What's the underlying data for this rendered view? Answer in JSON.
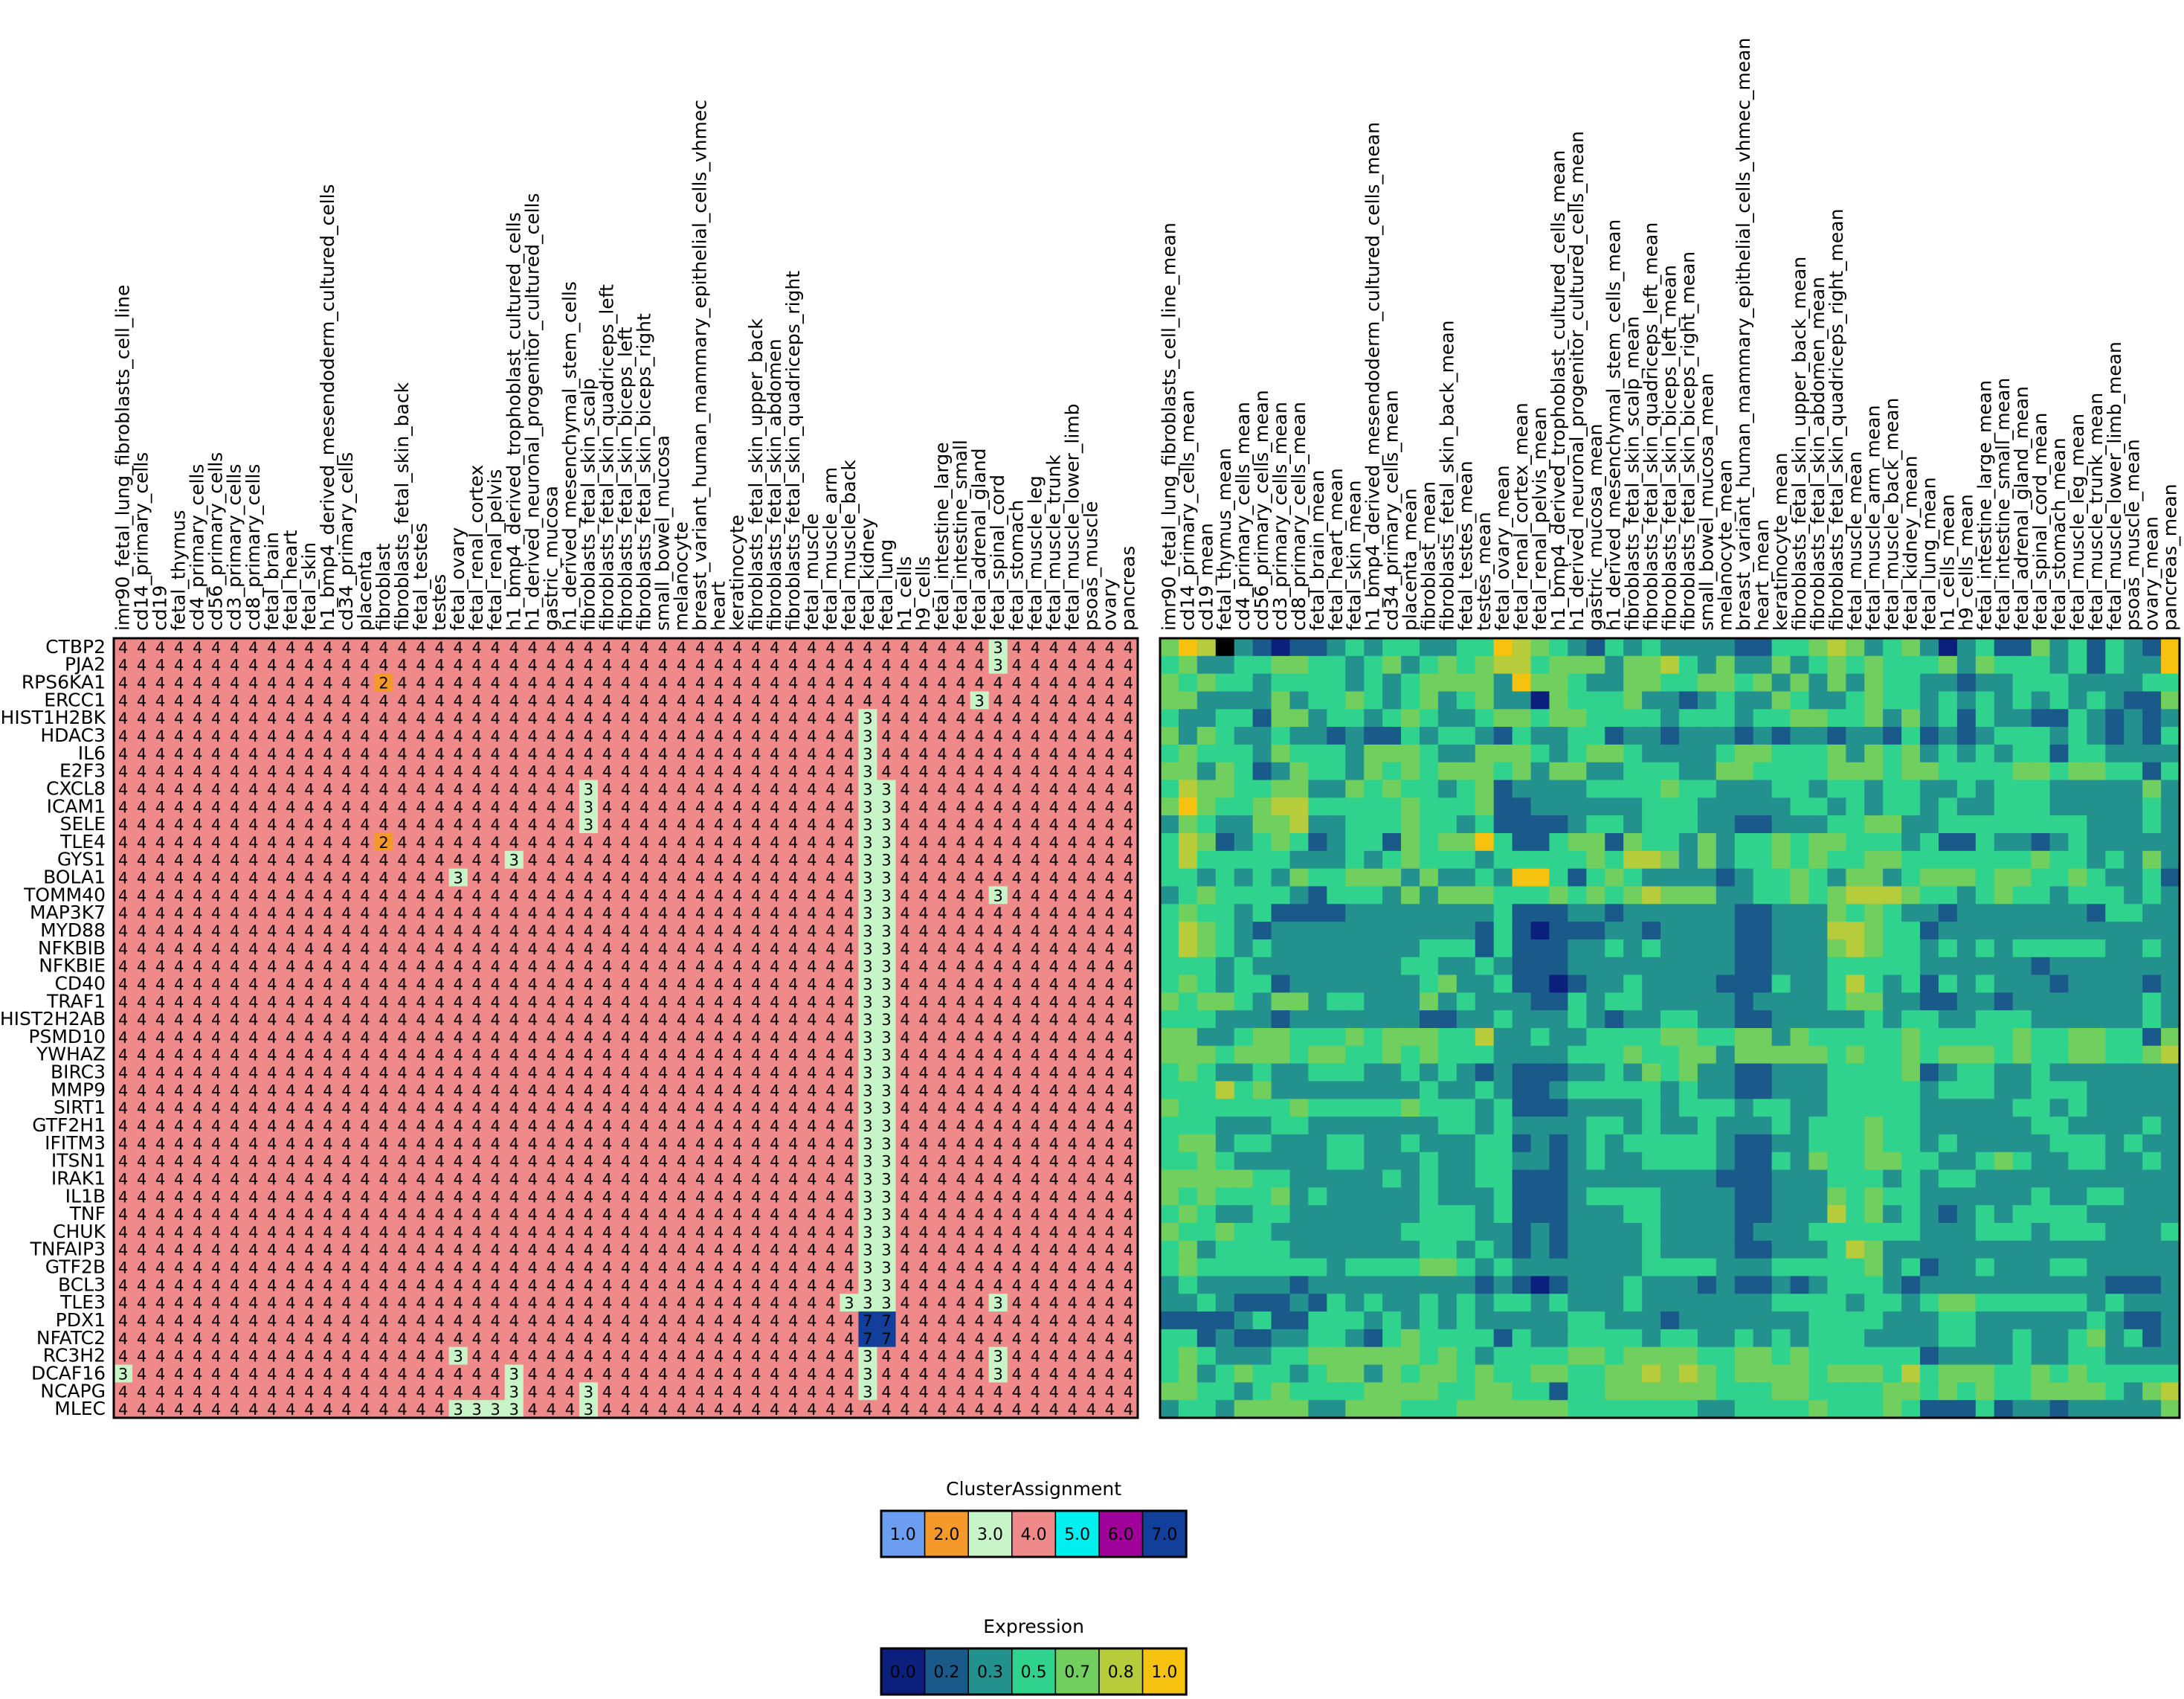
{
  "chart_data": [
    {
      "type": "heatmap",
      "rows": [
        "CTBP2",
        "PJA2",
        "RPS6KA1",
        "ERCC1",
        "HIST1H2BK",
        "HDAC3",
        "IL6",
        "E2F3",
        "CXCL8",
        "ICAM1",
        "SELE",
        "TLE4",
        "GYS1",
        "BOLA1",
        "TOMM40",
        "MAP3K7",
        "MYD88",
        "NFKBIB",
        "NFKBIE",
        "CD40",
        "TRAF1",
        "HIST2H2AB",
        "PSMD10",
        "YWHAZ",
        "BIRC3",
        "MMP9",
        "SIRT1",
        "GTF2H1",
        "IFITM3",
        "ITSN1",
        "IRAK1",
        "IL1B",
        "TNF",
        "CHUK",
        "TNFAIP3",
        "GTF2B",
        "BCL3",
        "TLE3",
        "PDX1",
        "NFATC2",
        "RC3H2",
        "DCAF16",
        "NCAPG",
        "MLEC"
      ],
      "columns": [
        "imr90_fetal_lung_fibroblasts_cell_line",
        "cd14_primary_cells",
        "cd19",
        "fetal_thymus",
        "cd4_primary_cells",
        "cd56_primary_cells",
        "cd3_primary_cells",
        "cd8_primary_cells",
        "fetal_brain",
        "fetal_heart",
        "fetal_skin",
        "h1_bmp4_derived_mesendoderm_cultured_cells",
        "cd34_primary_cells",
        "placenta",
        "fibroblast",
        "fibroblasts_fetal_skin_back",
        "fetal_testes",
        "testes",
        "fetal_ovary",
        "fetal_renal_cortex",
        "fetal_renal_pelvis",
        "h1_bmp4_derived_trophoblast_cultured_cells",
        "h1_derived_neuronal_progenitor_cultured_cells",
        "gastric_mucosa",
        "h1_derived_mesenchymal_stem_cells",
        "fibroblasts_fetal_skin_scalp",
        "fibroblasts_fetal_skin_quadriceps_left",
        "fibroblasts_fetal_skin_biceps_left",
        "fibroblasts_fetal_skin_biceps_right",
        "small_bowel_mucosa",
        "melanocyte",
        "breast_variant_human_mammary_epithelial_cells_vhmec",
        "heart",
        "keratinocyte",
        "fibroblasts_fetal_skin_upper_back",
        "fibroblasts_fetal_skin_abdomen",
        "fibroblasts_fetal_skin_quadriceps_right",
        "fetal_muscle",
        "fetal_muscle_arm",
        "fetal_muscle_back",
        "fetal_kidney",
        "fetal_lung",
        "h1_cells",
        "h9_cells",
        "fetal_intestine_large",
        "fetal_intestine_small",
        "fetal_adrenal_gland",
        "fetal_spinal_cord",
        "fetal_stomach",
        "fetal_muscle_leg",
        "fetal_muscle_trunk",
        "fetal_muscle_lower_limb",
        "psoas_muscle",
        "ovary",
        "pancreas"
      ],
      "default_value": 4,
      "exceptions": [
        {
          "row": "CTBP2",
          "col": "fetal_spinal_cord",
          "value": 3
        },
        {
          "row": "PJA2",
          "col": "fetal_spinal_cord",
          "value": 3
        },
        {
          "row": "RPS6KA1",
          "col": "fibroblast",
          "value": 2
        },
        {
          "row": "ERCC1",
          "col": "fetal_adrenal_gland",
          "value": 3
        },
        {
          "row": "HIST1H2BK",
          "col": "fetal_kidney",
          "value": 3
        },
        {
          "row": "HDAC3",
          "col": "fetal_kidney",
          "value": 3
        },
        {
          "row": "IL6",
          "col": "fetal_kidney",
          "value": 3
        },
        {
          "row": "E2F3",
          "col": "fetal_kidney",
          "value": 3
        },
        {
          "row": "CXCL8",
          "col": "fibroblasts_fetal_skin_scalp",
          "value": 3
        },
        {
          "row": "CXCL8",
          "col": "fetal_kidney",
          "value": 3
        },
        {
          "row": "CXCL8",
          "col": "fetal_lung",
          "value": 3
        },
        {
          "row": "ICAM1",
          "col": "fibroblasts_fetal_skin_scalp",
          "value": 3
        },
        {
          "row": "ICAM1",
          "col": "fetal_kidney",
          "value": 3
        },
        {
          "row": "ICAM1",
          "col": "fetal_lung",
          "value": 3
        },
        {
          "row": "SELE",
          "col": "fibroblasts_fetal_skin_scalp",
          "value": 3
        },
        {
          "row": "SELE",
          "col": "fetal_kidney",
          "value": 3
        },
        {
          "row": "SELE",
          "col": "fetal_lung",
          "value": 3
        },
        {
          "row": "TLE4",
          "col": "fibroblast",
          "value": 2
        },
        {
          "row": "TLE4",
          "col": "fetal_kidney",
          "value": 3
        },
        {
          "row": "TLE4",
          "col": "fetal_lung",
          "value": 3
        },
        {
          "row": "GYS1",
          "col": "h1_bmp4_derived_trophoblast_cultured_cells",
          "value": 3
        },
        {
          "row": "GYS1",
          "col": "fetal_kidney",
          "value": 3
        },
        {
          "row": "GYS1",
          "col": "fetal_lung",
          "value": 3
        },
        {
          "row": "BOLA1",
          "col": "fetal_ovary",
          "value": 3
        },
        {
          "row": "BOLA1",
          "col": "fetal_kidney",
          "value": 3
        },
        {
          "row": "BOLA1",
          "col": "fetal_lung",
          "value": 3
        },
        {
          "row": "TOMM40",
          "col": "fetal_kidney",
          "value": 3
        },
        {
          "row": "TOMM40",
          "col": "fetal_lung",
          "value": 3
        },
        {
          "row": "TOMM40",
          "col": "fetal_spinal_cord",
          "value": 3
        },
        {
          "row": "MAP3K7",
          "col": "fetal_kidney",
          "value": 3
        },
        {
          "row": "MAP3K7",
          "col": "fetal_lung",
          "value": 3
        },
        {
          "row": "MYD88",
          "col": "fetal_kidney",
          "value": 3
        },
        {
          "row": "MYD88",
          "col": "fetal_lung",
          "value": 3
        },
        {
          "row": "NFKBIB",
          "col": "fetal_kidney",
          "value": 3
        },
        {
          "row": "NFKBIB",
          "col": "fetal_lung",
          "value": 3
        },
        {
          "row": "NFKBIE",
          "col": "fetal_kidney",
          "value": 3
        },
        {
          "row": "NFKBIE",
          "col": "fetal_lung",
          "value": 3
        },
        {
          "row": "CD40",
          "col": "fetal_kidney",
          "value": 3
        },
        {
          "row": "CD40",
          "col": "fetal_lung",
          "value": 3
        },
        {
          "row": "TRAF1",
          "col": "fetal_kidney",
          "value": 3
        },
        {
          "row": "TRAF1",
          "col": "fetal_lung",
          "value": 3
        },
        {
          "row": "HIST2H2AB",
          "col": "fetal_kidney",
          "value": 3
        },
        {
          "row": "HIST2H2AB",
          "col": "fetal_lung",
          "value": 3
        },
        {
          "row": "PSMD10",
          "col": "fetal_kidney",
          "value": 3
        },
        {
          "row": "PSMD10",
          "col": "fetal_lung",
          "value": 3
        },
        {
          "row": "YWHAZ",
          "col": "fetal_kidney",
          "value": 3
        },
        {
          "row": "YWHAZ",
          "col": "fetal_lung",
          "value": 3
        },
        {
          "row": "BIRC3",
          "col": "fetal_kidney",
          "value": 3
        },
        {
          "row": "BIRC3",
          "col": "fetal_lung",
          "value": 3
        },
        {
          "row": "MMP9",
          "col": "fetal_kidney",
          "value": 3
        },
        {
          "row": "MMP9",
          "col": "fetal_lung",
          "value": 3
        },
        {
          "row": "SIRT1",
          "col": "fetal_kidney",
          "value": 3
        },
        {
          "row": "SIRT1",
          "col": "fetal_lung",
          "value": 3
        },
        {
          "row": "GTF2H1",
          "col": "fetal_kidney",
          "value": 3
        },
        {
          "row": "GTF2H1",
          "col": "fetal_lung",
          "value": 3
        },
        {
          "row": "IFITM3",
          "col": "fetal_kidney",
          "value": 3
        },
        {
          "row": "IFITM3",
          "col": "fetal_lung",
          "value": 3
        },
        {
          "row": "ITSN1",
          "col": "fetal_kidney",
          "value": 3
        },
        {
          "row": "ITSN1",
          "col": "fetal_lung",
          "value": 3
        },
        {
          "row": "IRAK1",
          "col": "fetal_kidney",
          "value": 3
        },
        {
          "row": "IRAK1",
          "col": "fetal_lung",
          "value": 3
        },
        {
          "row": "IL1B",
          "col": "fetal_kidney",
          "value": 3
        },
        {
          "row": "IL1B",
          "col": "fetal_lung",
          "value": 3
        },
        {
          "row": "TNF",
          "col": "fetal_kidney",
          "value": 3
        },
        {
          "row": "TNF",
          "col": "fetal_lung",
          "value": 3
        },
        {
          "row": "CHUK",
          "col": "fetal_kidney",
          "value": 3
        },
        {
          "row": "CHUK",
          "col": "fetal_lung",
          "value": 3
        },
        {
          "row": "TNFAIP3",
          "col": "fetal_kidney",
          "value": 3
        },
        {
          "row": "TNFAIP3",
          "col": "fetal_lung",
          "value": 3
        },
        {
          "row": "GTF2B",
          "col": "fetal_kidney",
          "value": 3
        },
        {
          "row": "GTF2B",
          "col": "fetal_lung",
          "value": 3
        },
        {
          "row": "BCL3",
          "col": "fetal_kidney",
          "value": 3
        },
        {
          "row": "BCL3",
          "col": "fetal_lung",
          "value": 3
        },
        {
          "row": "TLE3",
          "col": "fetal_muscle_back",
          "value": 3
        },
        {
          "row": "TLE3",
          "col": "fetal_kidney",
          "value": 3
        },
        {
          "row": "TLE3",
          "col": "fetal_lung",
          "value": 3
        },
        {
          "row": "TLE3",
          "col": "fetal_spinal_cord",
          "value": 3
        },
        {
          "row": "PDX1",
          "col": "fetal_kidney",
          "value": 7
        },
        {
          "row": "PDX1",
          "col": "fetal_lung",
          "value": 7
        },
        {
          "row": "NFATC2",
          "col": "fetal_kidney",
          "value": 7
        },
        {
          "row": "NFATC2",
          "col": "fetal_lung",
          "value": 7
        },
        {
          "row": "RC3H2",
          "col": "fetal_ovary",
          "value": 3
        },
        {
          "row": "RC3H2",
          "col": "fetal_kidney",
          "value": 3
        },
        {
          "row": "RC3H2",
          "col": "fetal_spinal_cord",
          "value": 3
        },
        {
          "row": "DCAF16",
          "col": "imr90_fetal_lung_fibroblasts_cell_line",
          "value": 3
        },
        {
          "row": "DCAF16",
          "col": "h1_bmp4_derived_trophoblast_cultured_cells",
          "value": 3
        },
        {
          "row": "DCAF16",
          "col": "fetal_kidney",
          "value": 3
        },
        {
          "row": "DCAF16",
          "col": "fetal_spinal_cord",
          "value": 3
        },
        {
          "row": "NCAPG",
          "col": "h1_bmp4_derived_trophoblast_cultured_cells",
          "value": 3
        },
        {
          "row": "NCAPG",
          "col": "fibroblasts_fetal_skin_scalp",
          "value": 3
        },
        {
          "row": "NCAPG",
          "col": "fetal_kidney",
          "value": 3
        },
        {
          "row": "MLEC",
          "col": "fetal_ovary",
          "value": 3
        },
        {
          "row": "MLEC",
          "col": "fetal_renal_cortex",
          "value": 3
        },
        {
          "row": "MLEC",
          "col": "fetal_renal_pelvis",
          "value": 3
        },
        {
          "row": "MLEC",
          "col": "h1_bmp4_derived_trophoblast_cultured_cells",
          "value": 3
        },
        {
          "row": "MLEC",
          "col": "fibroblasts_fetal_skin_scalp",
          "value": 3
        }
      ],
      "legend": {
        "title": "ClusterAssignment",
        "labels": [
          "1.0",
          "2.0",
          "3.0",
          "4.0",
          "5.0",
          "6.0",
          "7.0"
        ],
        "colors": [
          "#6b9ef0",
          "#f59a2a",
          "#c8f5c8",
          "#f08a8a",
          "#00f0f0",
          "#a0009a",
          "#123f9a"
        ]
      }
    },
    {
      "type": "heatmap",
      "rows": [
        "CTBP2",
        "PJA2",
        "RPS6KA1",
        "ERCC1",
        "HIST1H2BK",
        "HDAC3",
        "IL6",
        "E2F3",
        "CXCL8",
        "ICAM1",
        "SELE",
        "TLE4",
        "GYS1",
        "BOLA1",
        "TOMM40",
        "MAP3K7",
        "MYD88",
        "NFKBIB",
        "NFKBIE",
        "CD40",
        "TRAF1",
        "HIST2H2AB",
        "PSMD10",
        "YWHAZ",
        "BIRC3",
        "MMP9",
        "SIRT1",
        "GTF2H1",
        "IFITM3",
        "ITSN1",
        "IRAK1",
        "IL1B",
        "TNF",
        "CHUK",
        "TNFAIP3",
        "GTF2B",
        "BCL3",
        "TLE3",
        "PDX1",
        "NFATC2",
        "RC3H2",
        "DCAF16",
        "NCAPG",
        "MLEC"
      ],
      "columns": [
        "imr90_fetal_lung_fibroblasts_cell_line_mean",
        "cd14_primary_cells_mean",
        "cd19_mean",
        "fetal_thymus_mean",
        "cd4_primary_cells_mean",
        "cd56_primary_cells_mean",
        "cd3_primary_cells_mean",
        "cd8_primary_cells_mean",
        "fetal_brain_mean",
        "fetal_heart_mean",
        "fetal_skin_mean",
        "h1_bmp4_derived_mesendoderm_cultured_cells_mean",
        "cd34_primary_cells_mean",
        "placenta_mean",
        "fibroblast_mean",
        "fibroblasts_fetal_skin_back_mean",
        "fetal_testes_mean",
        "testes_mean",
        "fetal_ovary_mean",
        "fetal_renal_cortex_mean",
        "fetal_renal_pelvis_mean",
        "h1_bmp4_derived_trophoblast_cultured_cells_mean",
        "h1_derived_neuronal_progenitor_cultured_cells_mean",
        "gastric_mucosa_mean",
        "h1_derived_mesenchymal_stem_cells_mean",
        "fibroblasts_fetal_skin_scalp_mean",
        "fibroblasts_fetal_skin_quadriceps_left_mean",
        "fibroblasts_fetal_skin_biceps_left_mean",
        "fibroblasts_fetal_skin_biceps_right_mean",
        "small_bowel_mucosa_mean",
        "melanocyte_mean",
        "breast_variant_human_mammary_epithelial_cells_vhmec_mean",
        "heart_mean",
        "keratinocyte_mean",
        "fibroblasts_fetal_skin_upper_back_mean",
        "fibroblasts_fetal_skin_abdomen_mean",
        "fibroblasts_fetal_skin_quadriceps_right_mean",
        "fetal_muscle_mean",
        "fetal_muscle_arm_mean",
        "fetal_muscle_back_mean",
        "fetal_kidney_mean",
        "fetal_lung_mean",
        "h1_cells_mean",
        "h9_cells_mean",
        "fetal_intestine_large_mean",
        "fetal_intestine_small_mean",
        "fetal_adrenal_gland_mean",
        "fetal_spinal_cord_mean",
        "fetal_stomach_mean",
        "fetal_muscle_leg_mean",
        "fetal_muscle_trunk_mean",
        "fetal_muscle_lower_limb_mean",
        "psoas_muscle_mean",
        "ovary_mean",
        "pancreas_mean"
      ],
      "values_rows": [
        "4657210112323322336543213232222113345423420231142313216",
        "3422334433234234345534442445324224234343334243332313226",
        "4343323333232344442644322443344342424243322122333222233",
        "4422224233432342342204333422123224322343323232323232114",
        "3223314423323432234434433332333233443342423132211321212",
        "4243223221211323321322331221222121221221312123332321213",
        "3433324333244432244432344322223443334243423232331332222",
        "4424312433243434443424422333224433334443443333443443313",
        "3544334422434332341222233334332223323323322323332222242",
        "4643345533333433341122222233322222332323323223332222232",
        "2432244522333433231111233233322112223344223333333322232",
        "3541234312331434463113441433242334344333231132212322222",
        "3533333222323433323333343554242334343344333333343323242",
        "3323232433444242232663134322221233432442344434433432231",
        "2343333213332424443334343454442233434555433234332333232",
        "3433231111222222223111221222222112224343221222222213322",
        "3543212222222222213101112212222112225543312222222222222",
        "3543232222222233313111223232222112224543323232333332232",
        "3332322222222332232111222222222112223333322222212222222",
        "3432331222222234223110122322221113223532313232221222212",
        "4344324423322242322211323322222122223442211221222222232",
        "3332221222222211223222321223322112222232332233322222232",
        "4422344333434443352232233334433442433333433333433443314",
        "4443444344334343332222333433442444443433434443433443345",
        "3432232233322323212111223243422112223333412332232222222",
        "3335342222222232232112333332322112223333323332233322222",
        "4333333433333433323111222232333233223333322222332322222",
        "3332223322222223323222233232232223233343322222233222232",
        "3442332223322322233121232333332112233343323222223332322",
        "3343222223322232233221232233332113243344332234322332232",
        "4444433222223232233111222222221112223332323322222222222",
        "4343334232222232223111233332222112224343322222232233222",
        "3432233222222233323111222332222112225342321232333322222",
        "4334332222222333322121222232222122233333322233323332223",
        "3423333222222233232121222232222112223542222222222222222",
        "3433333332333344323222222233332223333342312232223322222",
        "2322222122222222212101222322212112123332122222222221112",
        "2232111213232232323323222322222223333233234433333323222",
        "1111231133323232322222332221222222233332223322222232112",
        "3312112233213433331322333323322323233322223322322342312",
        "3432223344444434323333443444433443433333312222322332222",
        "3423433234424344343344334454543444434443534443343433333",
        "4433234333344443344331334444443334433334434343344443245",
        "2332444422444333444444333333322333343334311131221222224"
      ],
      "value_scale_note": "",
      "legend": {
        "title": "Expression",
        "labels": [
          "0.0",
          "0.2",
          "0.3",
          "0.5",
          "0.7",
          "0.8",
          "1.0"
        ],
        "colors": [
          "#0b1f7d",
          "#1a5a8a",
          "#23928e",
          "#2fd38d",
          "#70cf5d",
          "#b6cc3b",
          "#f4c20f"
        ]
      }
    }
  ]
}
